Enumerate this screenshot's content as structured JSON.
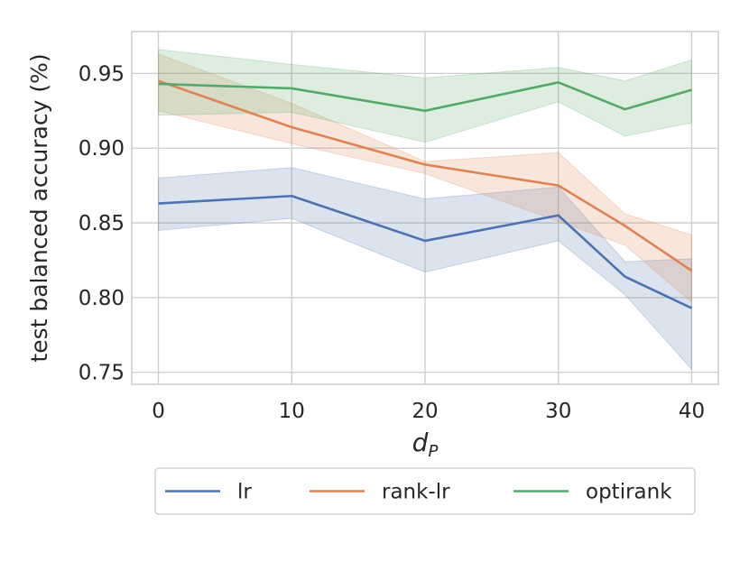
{
  "chart_data": {
    "type": "line",
    "title": "",
    "xlabel": "d",
    "xlabel_subscript": "P",
    "ylabel": "test balanced accuracy (%)",
    "x": [
      0,
      10,
      20,
      30,
      35,
      40
    ],
    "xlim": [
      -2,
      42
    ],
    "ylim": [
      0.742,
      0.978
    ],
    "xticks": [
      0,
      10,
      20,
      30,
      40
    ],
    "xtick_labels": [
      "0",
      "10",
      "20",
      "30",
      "40"
    ],
    "yticks": [
      0.75,
      0.8,
      0.85,
      0.9,
      0.95
    ],
    "ytick_labels": [
      "0.75",
      "0.80",
      "0.85",
      "0.90",
      "0.95"
    ],
    "grid": true,
    "legend_position": "bottom-center-outside",
    "series": [
      {
        "name": "lr",
        "color": "#4c72b0",
        "values": [
          0.863,
          0.868,
          0.838,
          0.855,
          0.814,
          0.793
        ],
        "lower": [
          0.845,
          0.853,
          0.817,
          0.838,
          0.802,
          0.752
        ],
        "upper": [
          0.88,
          0.887,
          0.866,
          0.874,
          0.824,
          0.826
        ]
      },
      {
        "name": "rank-lr",
        "color": "#dd8452",
        "values": [
          0.945,
          0.914,
          0.889,
          0.875,
          0.848,
          0.818
        ],
        "lower": [
          0.925,
          0.903,
          0.883,
          0.851,
          0.835,
          0.797
        ],
        "upper": [
          0.963,
          0.93,
          0.891,
          0.897,
          0.856,
          0.842
        ]
      },
      {
        "name": "optirank",
        "color": "#55a868",
        "values": [
          0.943,
          0.94,
          0.925,
          0.944,
          0.926,
          0.939
        ],
        "lower": [
          0.922,
          0.924,
          0.904,
          0.931,
          0.908,
          0.917
        ],
        "upper": [
          0.966,
          0.956,
          0.947,
          0.954,
          0.945,
          0.959
        ]
      }
    ]
  }
}
